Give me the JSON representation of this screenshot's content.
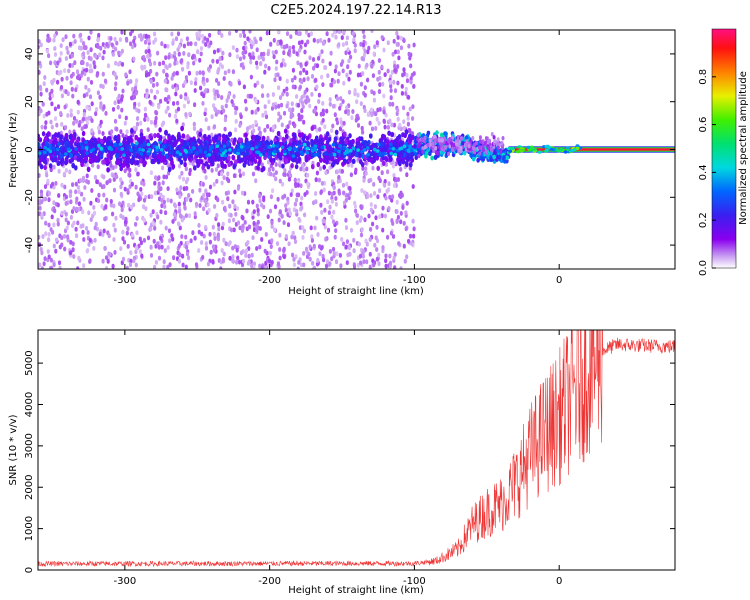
{
  "title": "C2E5.2024.197.22.14.R13",
  "chart_data": [
    {
      "type": "heatmap",
      "xlabel": "Height of straight line (km)",
      "ylabel": "Frequency (Hz)",
      "xlim": [
        -360,
        80
      ],
      "ylim": [
        -50,
        50
      ],
      "xticks": [
        -300,
        -200,
        -100,
        0
      ],
      "yticks": [
        -40,
        -20,
        0,
        20,
        40
      ],
      "colorbar": {
        "label": "Normalized spectral amplitude",
        "range": [
          0,
          1
        ],
        "ticks": [
          0.0,
          0.2,
          0.4,
          0.6,
          0.8
        ],
        "colormap": "rainbow (purple-blue-cyan-green-yellow-red-magenta)"
      },
      "features": {
        "noisy_region_x": [
          -360,
          -100
        ],
        "noise_band_center_hz": 0,
        "noise_band_halfwidth_hz": 10,
        "transition_region_x": [
          -100,
          -35
        ],
        "stable_line_x": [
          -35,
          80
        ],
        "stable_line_hz": 0,
        "stable_line_amplitude": 0.95
      }
    },
    {
      "type": "line",
      "xlabel": "Height of straight line (km)",
      "ylabel": "SNR (10 * v/v)",
      "xlim": [
        -360,
        80
      ],
      "ylim": [
        0,
        5800
      ],
      "xticks": [
        -300,
        -200,
        -100,
        0
      ],
      "yticks": [
        0,
        1000,
        2000,
        3000,
        4000,
        5000
      ],
      "color": "#ee3333",
      "profile": [
        {
          "x": -360,
          "y": 150
        },
        {
          "x": -100,
          "y": 160
        },
        {
          "x": -85,
          "y": 220
        },
        {
          "x": -70,
          "y": 500
        },
        {
          "x": -60,
          "y": 1100
        },
        {
          "x": -50,
          "y": 1400
        },
        {
          "x": -40,
          "y": 1600
        },
        {
          "x": -30,
          "y": 2100
        },
        {
          "x": -20,
          "y": 2800
        },
        {
          "x": -10,
          "y": 3300
        },
        {
          "x": 0,
          "y": 3700
        },
        {
          "x": 10,
          "y": 4300
        },
        {
          "x": 20,
          "y": 4900
        },
        {
          "x": 30,
          "y": 5300
        },
        {
          "x": 40,
          "y": 5450
        },
        {
          "x": 60,
          "y": 5420
        },
        {
          "x": 80,
          "y": 5400
        }
      ]
    }
  ]
}
